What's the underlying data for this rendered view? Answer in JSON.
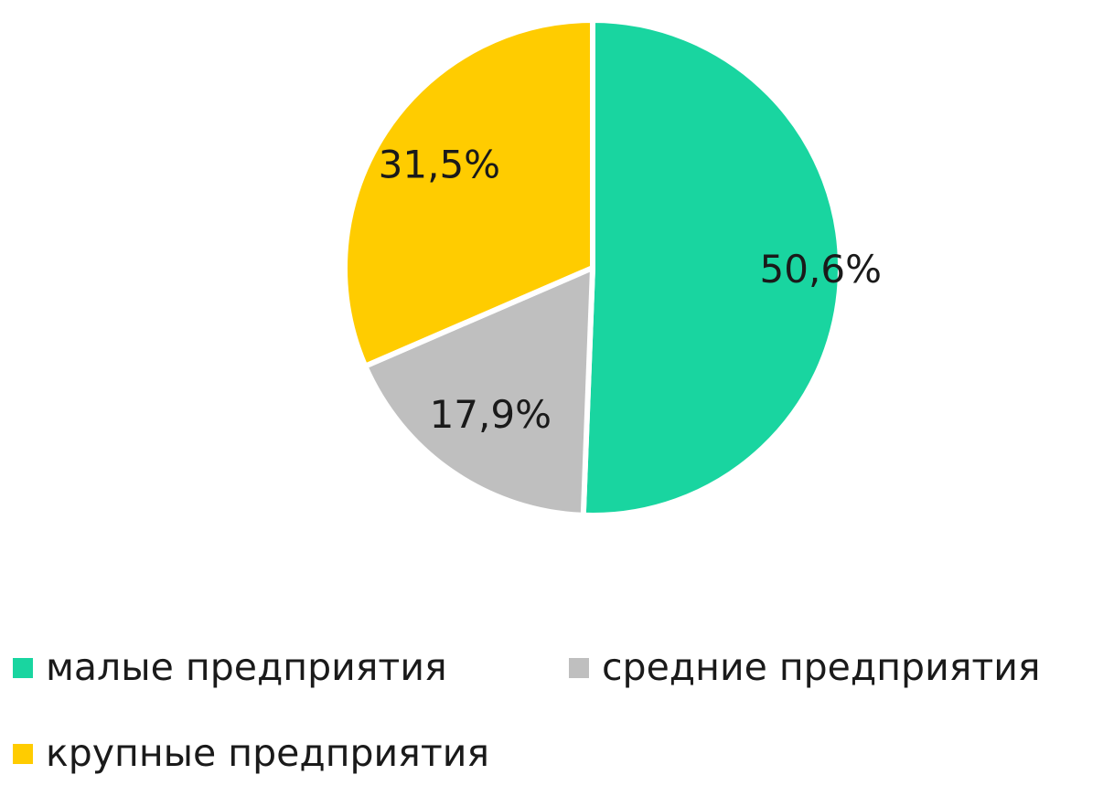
{
  "chart_data": {
    "type": "pie",
    "categories": [
      "малые предприятия",
      "средние предприятия",
      "крупные предприятия"
    ],
    "values": [
      50.6,
      17.9,
      31.5
    ],
    "data_labels": [
      "50,6%",
      "17,9%",
      "31,5%"
    ],
    "colors": [
      "#19D5A0",
      "#BFBFBF",
      "#FFCC00"
    ],
    "legend_position": "bottom",
    "start_angle": "12 o'clock",
    "direction": "clockwise"
  }
}
